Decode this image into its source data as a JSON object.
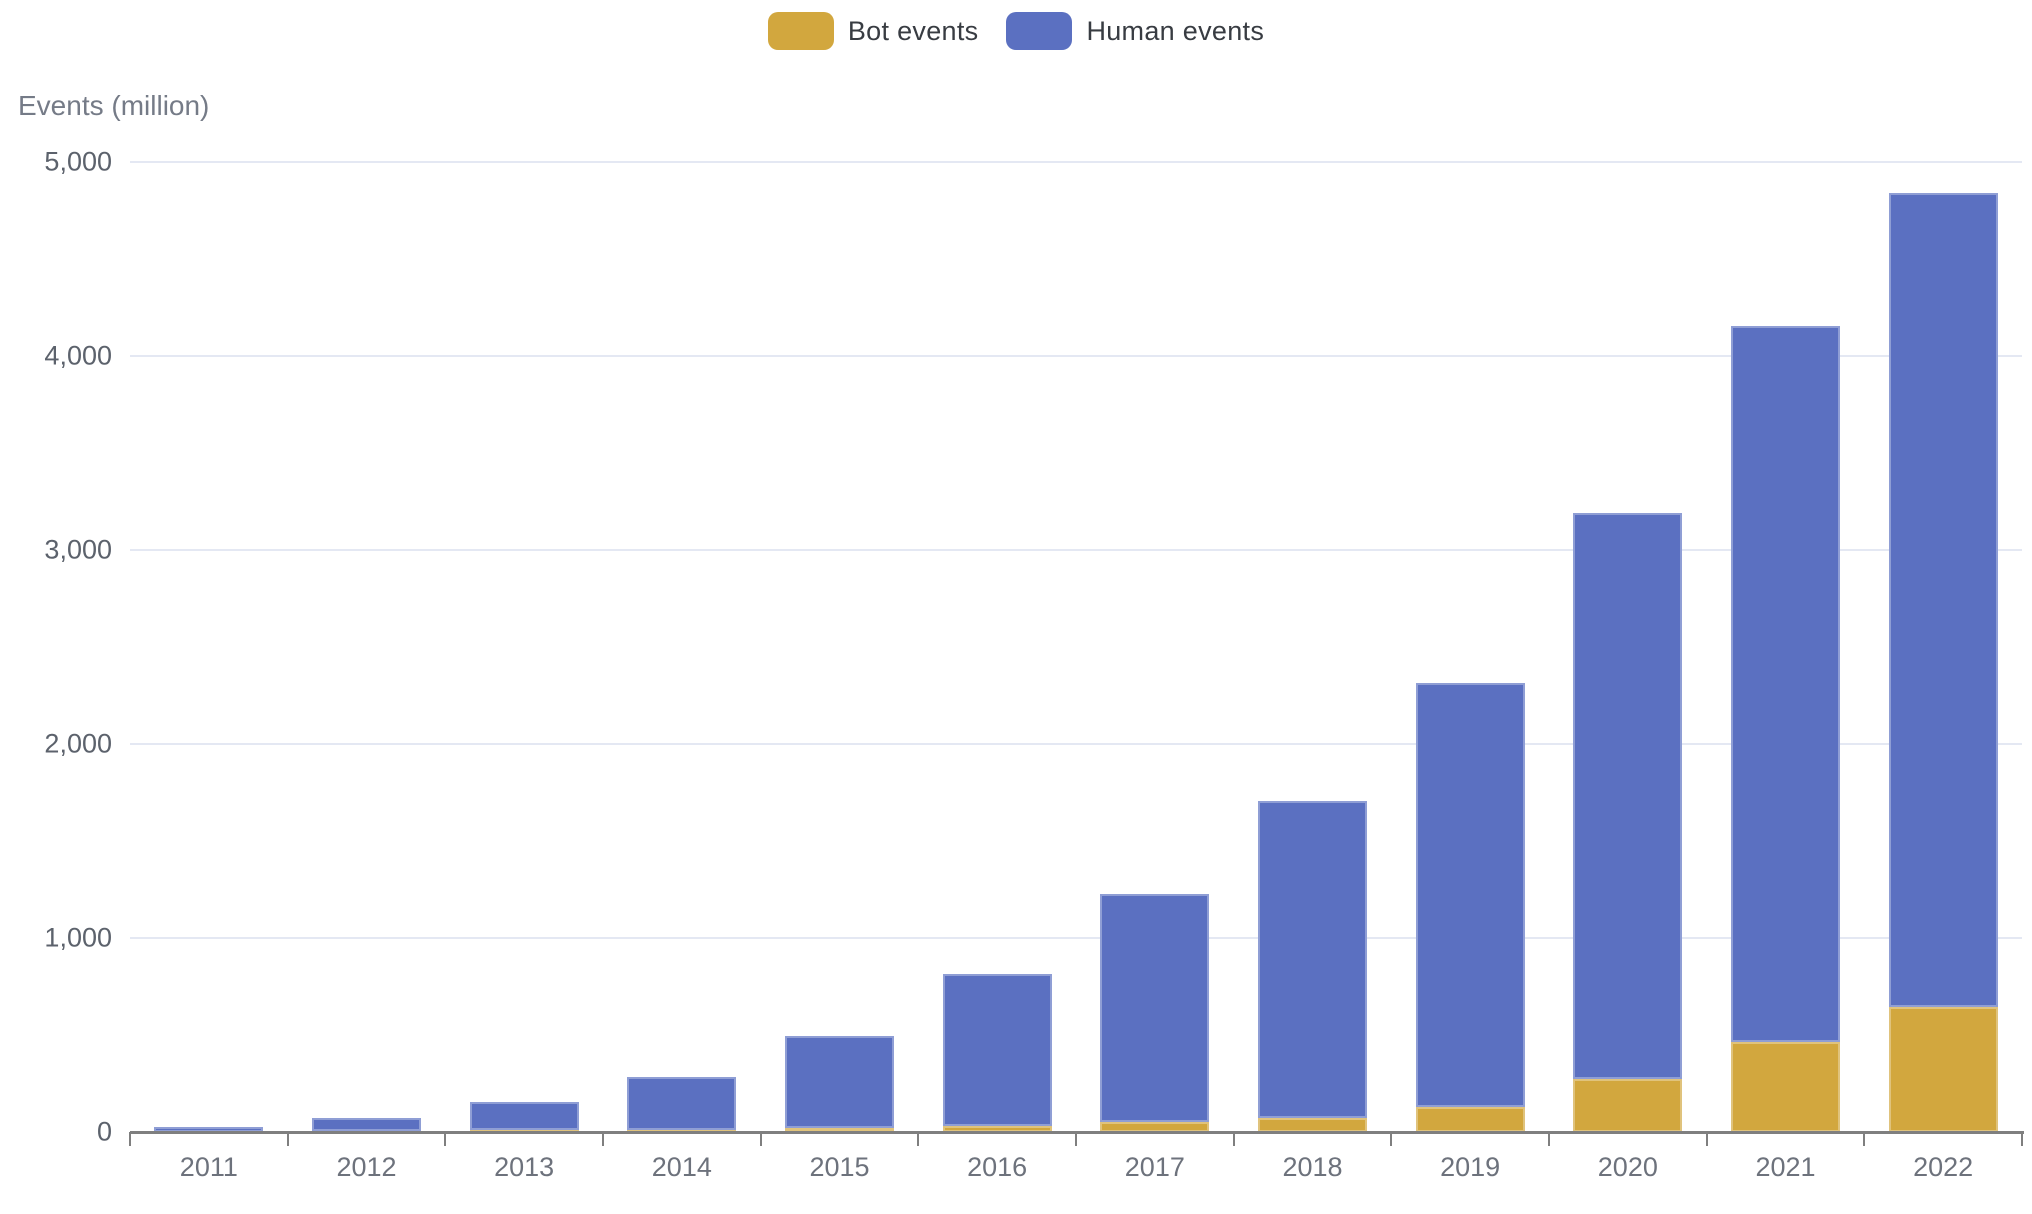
{
  "legend": {
    "bot_label": "Bot events",
    "human_label": "Human events"
  },
  "chart_data": {
    "type": "bar",
    "stacked": true,
    "title": "",
    "xlabel": "",
    "ylabel": "Events (million)",
    "categories": [
      "2011",
      "2012",
      "2013",
      "2014",
      "2015",
      "2016",
      "2017",
      "2018",
      "2019",
      "2020",
      "2021",
      "2022"
    ],
    "series": [
      {
        "name": "Bot events",
        "color": "#d2a73e",
        "values": [
          2,
          4,
          8,
          12,
          21,
          30,
          52,
          73,
          130,
          272,
          464,
          643
        ]
      },
      {
        "name": "Human events",
        "color": "#5b70c1",
        "values": [
          25,
          69,
          146,
          273,
          473,
          787,
          1174,
          1634,
          2185,
          2920,
          3689,
          4197
        ]
      }
    ],
    "totals": [
      27,
      73,
      154,
      285,
      494,
      817,
      1226,
      1707,
      2315,
      3192,
      4153,
      4840
    ],
    "ylim": [
      0,
      5000
    ],
    "yticks": [
      0,
      1000,
      2000,
      3000,
      4000,
      5000
    ],
    "ytick_labels": [
      "0",
      "1,000",
      "2,000",
      "3,000",
      "4,000",
      "5,000"
    ],
    "grid": true,
    "legend_position": "top",
    "colors": {
      "grid": "#e4e8f3",
      "axis": "#7f7f7f",
      "y_tick_text": "#5c626c",
      "x_tick_text": "#6d727c",
      "legend_text": "#383c42",
      "y_title_text": "#757b87"
    }
  }
}
